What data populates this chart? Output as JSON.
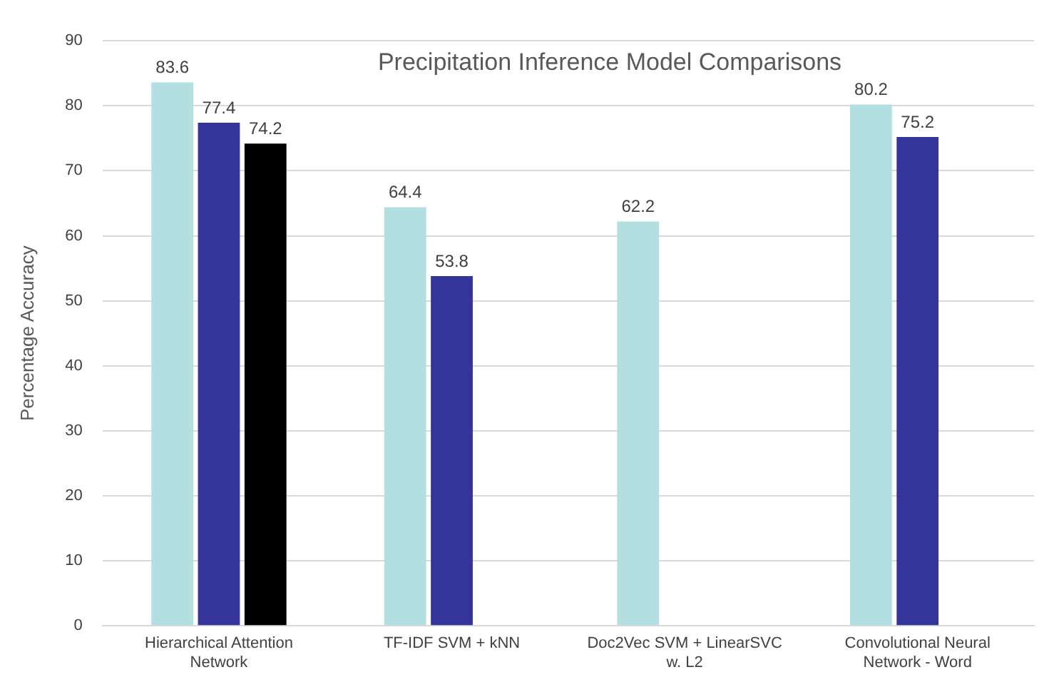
{
  "chart_data": {
    "type": "bar",
    "title": "Precipitation Inference Model Comparisons",
    "ylabel": "Percentage Accuracy",
    "categories": [
      "Hierarchical Attention Network",
      "TF-IDF SVM + kNN",
      "Doc2Vec SVM + LinearSVC w. L2",
      "Convolutional Neural Network - Word"
    ],
    "series": [
      {
        "color": "#b4dfe1",
        "values": [
          83.6,
          64.4,
          62.2,
          80.2
        ]
      },
      {
        "color": "#34349a",
        "values": [
          77.4,
          53.8,
          null,
          75.2
        ]
      },
      {
        "color": "#000000",
        "values": [
          74.2,
          null,
          null,
          null
        ]
      }
    ],
    "ylim": [
      0,
      90
    ],
    "yticks": [
      0,
      10,
      20,
      30,
      40,
      50,
      60,
      70,
      80,
      90
    ],
    "grid": "y",
    "legend": false,
    "data_labels": true
  }
}
